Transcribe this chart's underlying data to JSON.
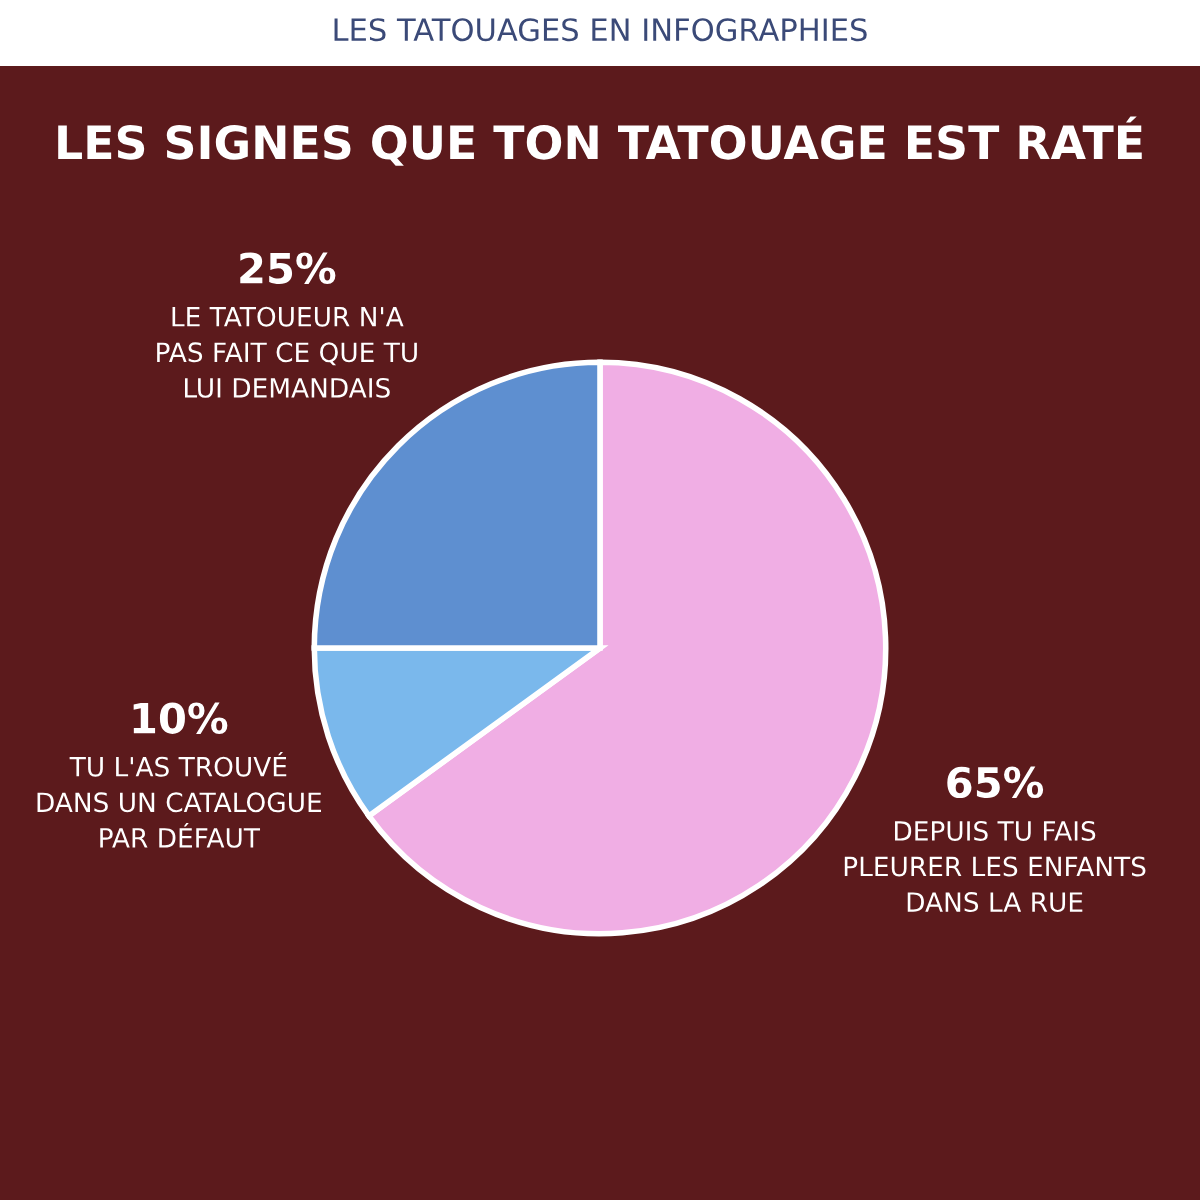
{
  "chart_data": {
    "type": "pie",
    "subtitle": "LES TATOUAGES EN INFOGRAPHIES",
    "title": "LES SIGNES QUE TON TATOUAGE EST RATÉ",
    "categories": [
      "DEPUIS TU FAIS\nPLEURER LES ENFANTS\nDANS LA RUE",
      "TU L'AS TROUVÉ\nDANS UN CATALOGUE\nPAR DÉFAUT",
      "LE TATOUEUR N'A\nPAS FAIT CE QUE TU\nLUI DEMANDAIS"
    ],
    "values": [
      65,
      10,
      25
    ],
    "value_labels": [
      "65%",
      "10%",
      "25%"
    ],
    "colors": [
      "#f0aee4",
      "#7ab8ec",
      "#5e8fd0"
    ]
  }
}
